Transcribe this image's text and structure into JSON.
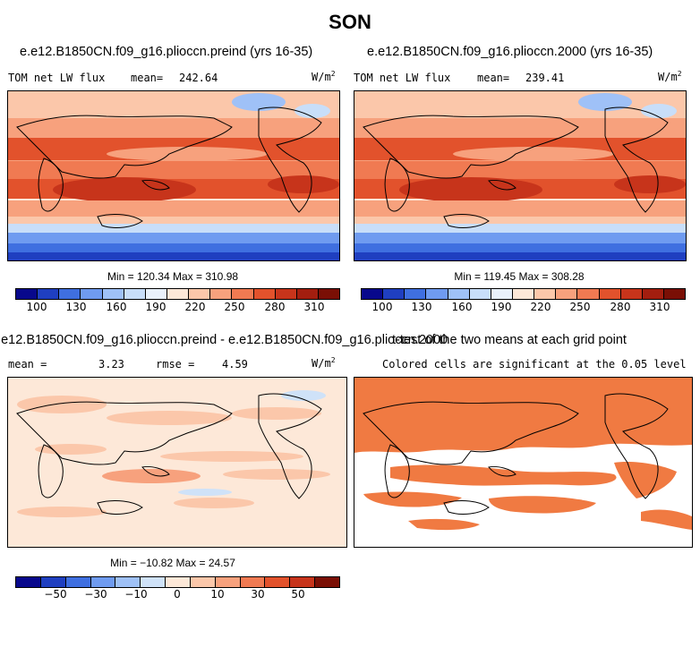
{
  "figure": {
    "title": "SON"
  },
  "panels": [
    {
      "id": "preind",
      "title": "e.e12.B1850CN.f09_g16.plioccn.preind (yrs 16-35)",
      "left_label": "TOM net LW flux",
      "mean_label": "mean=",
      "mean_value": "242.64",
      "units": "W/m",
      "units_sup": "2",
      "minmax": "Min = 120.34 Max = 310.98",
      "colorbar_ticks": [
        "100",
        "130",
        "160",
        "190",
        "220",
        "250",
        "280",
        "310"
      ]
    },
    {
      "id": "y2000",
      "title": "e.e12.B1850CN.f09_g16.plioccn.2000 (yrs 16-35)",
      "left_label": "TOM net LW flux",
      "mean_label": "mean=",
      "mean_value": "239.41",
      "units": "W/m",
      "units_sup": "2",
      "minmax": "Min = 119.45 Max = 308.28",
      "colorbar_ticks": [
        "100",
        "130",
        "160",
        "190",
        "220",
        "250",
        "280",
        "310"
      ]
    },
    {
      "id": "diff",
      "title": "e.e12.B1850CN.f09_g16.plioccn.preind - e.e12.B1850CN.f09_g16.plioccn.2000",
      "mean_label": "mean =",
      "mean_value": "3.23",
      "rmse_label": "rmse =",
      "rmse_value": "4.59",
      "units": "W/m",
      "units_sup": "2",
      "minmax": "Min = −10.82 Max =  24.57",
      "colorbar_ticks": [
        "−50",
        "−30",
        "−10",
        "0",
        "10",
        "30",
        "50"
      ]
    },
    {
      "id": "ttest",
      "title": "t-test of the two means at each grid point",
      "subtitle": "Colored cells are significant at the 0.05 level"
    }
  ],
  "colors": {
    "abs_scale": [
      "#08088c",
      "#1f3fc0",
      "#3f6fe0",
      "#6f9bf0",
      "#9fc1f7",
      "#c8def9",
      "#e9f1fb",
      "#fde8d8",
      "#fbc7aa",
      "#f7a17d",
      "#f07a52",
      "#e2522c",
      "#c7341b",
      "#a31e0f",
      "#7a0f05"
    ],
    "diff_scale": [
      "#08088c",
      "#1f3fc0",
      "#3f6fe0",
      "#6f9bf0",
      "#9fc1f7",
      "#cfe2f8",
      "#fde8d8",
      "#fbc7aa",
      "#f7a17d",
      "#f07a52",
      "#e2522c",
      "#c7341b",
      "#7a0f05"
    ],
    "significant": "#f07a42"
  },
  "chart_data": [
    {
      "type": "heatmap",
      "title": "e.e12.B1850CN.f09_g16.plioccn.preind (yrs 16-35)",
      "variable": "TOM net LW flux",
      "units": "W/m2",
      "mean": 242.64,
      "min": 120.34,
      "max": 310.98,
      "colorbar_range": [
        100,
        310
      ],
      "colorbar_ticks": [
        100,
        130,
        160,
        190,
        220,
        250,
        280,
        310
      ]
    },
    {
      "type": "heatmap",
      "title": "e.e12.B1850CN.f09_g16.plioccn.2000 (yrs 16-35)",
      "variable": "TOM net LW flux",
      "units": "W/m2",
      "mean": 239.41,
      "min": 119.45,
      "max": 308.28,
      "colorbar_range": [
        100,
        310
      ],
      "colorbar_ticks": [
        100,
        130,
        160,
        190,
        220,
        250,
        280,
        310
      ]
    },
    {
      "type": "heatmap",
      "title": "e.e12.B1850CN.f09_g16.plioccn.preind - e.e12.B1850CN.f09_g16.plioccn.2000",
      "units": "W/m2",
      "mean": 3.23,
      "rmse": 4.59,
      "min": -10.82,
      "max": 24.57,
      "colorbar_ticks": [
        -50,
        -30,
        -10,
        0,
        10,
        30,
        50
      ]
    },
    {
      "type": "heatmap",
      "title": "t-test of the two means at each grid point",
      "note": "Colored cells are significant at the 0.05 level"
    }
  ]
}
